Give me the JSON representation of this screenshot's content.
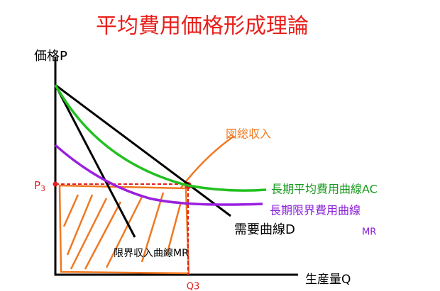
{
  "title": "平均費用価格形成理論",
  "axes": {
    "y_label": "価格P",
    "x_label": "生産量Q"
  },
  "price_label": {
    "main": "P",
    "sub": "3"
  },
  "quantity_label": "Q3",
  "annotation": "図総収入",
  "curves": {
    "average_cost": "長期平均費用曲線AC",
    "marginal_cost": {
      "line1": "長期限界費用曲線",
      "line2": "MR"
    },
    "demand": "需要曲線D",
    "marginal_revenue": "限界収入曲線MR"
  }
}
